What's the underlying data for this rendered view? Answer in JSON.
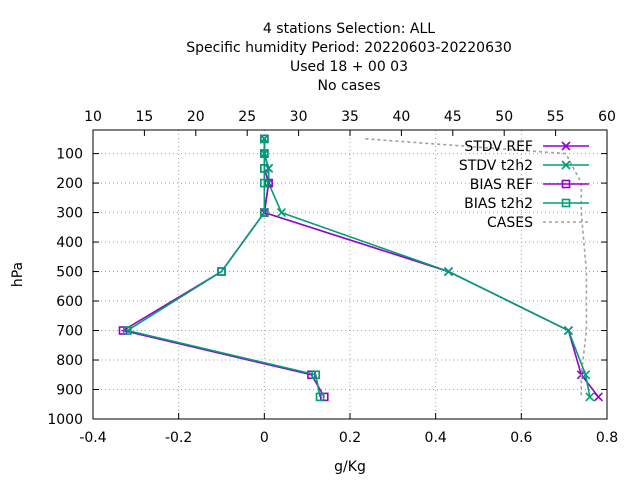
{
  "chart_data": {
    "type": "line",
    "title_lines": [
      "4 stations Selection: ALL",
      "Specific humidity  Period: 20220603-20220630",
      "Used  18  + 00 03",
      "No cases"
    ],
    "xlabel": "g/Kg",
    "ylabel": "hPa",
    "x_bottom": {
      "lim": [
        -0.4,
        0.8
      ],
      "ticks": [
        -0.4,
        -0.2,
        0,
        0.2,
        0.4,
        0.6,
        0.8
      ],
      "tick_labels": [
        "-0.4",
        "-0.2",
        "0",
        "0.2",
        "0.4",
        "0.6",
        "0.8"
      ]
    },
    "x_top": {
      "lim": [
        10,
        60
      ],
      "ticks": [
        10,
        15,
        20,
        25,
        30,
        35,
        40,
        45,
        50,
        55,
        60
      ],
      "tick_labels": [
        "10",
        "15",
        "20",
        "25",
        "30",
        "35",
        "40",
        "45",
        "50",
        "55",
        "60"
      ]
    },
    "y": {
      "lim": [
        1000,
        20
      ],
      "inverted": true,
      "ticks": [
        100,
        200,
        300,
        400,
        500,
        600,
        700,
        800,
        900,
        1000
      ],
      "tick_labels": [
        "100",
        "200",
        "300",
        "400",
        "500",
        "600",
        "700",
        "800",
        "900",
        "1000"
      ]
    },
    "grid": true,
    "legend_position": "top-right",
    "series": [
      {
        "name": "STDV REF",
        "color": "#9400d3",
        "marker": "x",
        "axis": "bottom",
        "points": [
          [
            0.0,
            50
          ],
          [
            0.0,
            100
          ],
          [
            0.01,
            150
          ],
          [
            0.01,
            200
          ],
          [
            0.0,
            300
          ],
          [
            0.43,
            500
          ],
          [
            0.71,
            700
          ],
          [
            0.74,
            850
          ],
          [
            0.78,
            925
          ]
        ]
      },
      {
        "name": "STDV t2h2",
        "color": "#009e73",
        "marker": "x",
        "axis": "bottom",
        "points": [
          [
            0.0,
            50
          ],
          [
            0.0,
            100
          ],
          [
            0.01,
            150
          ],
          [
            0.01,
            200
          ],
          [
            0.04,
            300
          ],
          [
            0.43,
            500
          ],
          [
            0.71,
            700
          ],
          [
            0.75,
            850
          ],
          [
            0.76,
            925
          ]
        ]
      },
      {
        "name": "BIAS REF",
        "color": "#9400d3",
        "marker": "square",
        "axis": "bottom",
        "points": [
          [
            0.0,
            50
          ],
          [
            0.0,
            100
          ],
          [
            0.0,
            150
          ],
          [
            0.01,
            200
          ],
          [
            0.0,
            300
          ],
          [
            -0.1,
            500
          ],
          [
            -0.33,
            700
          ],
          [
            0.11,
            850
          ],
          [
            0.14,
            925
          ]
        ]
      },
      {
        "name": "BIAS t2h2",
        "color": "#009e73",
        "marker": "square",
        "axis": "bottom",
        "points": [
          [
            0.0,
            50
          ],
          [
            0.0,
            100
          ],
          [
            0.0,
            150
          ],
          [
            0.0,
            200
          ],
          [
            0.0,
            300
          ],
          [
            -0.1,
            500
          ],
          [
            -0.32,
            700
          ],
          [
            0.12,
            850
          ],
          [
            0.13,
            925
          ]
        ]
      },
      {
        "name": "CASES",
        "color": "#a0a0a0",
        "marker": "none",
        "dashed": true,
        "axis": "top",
        "points": [
          [
            36.5,
            50
          ],
          [
            56,
            100
          ],
          [
            57.5,
            200
          ],
          [
            57.5,
            300
          ],
          [
            58,
            500
          ],
          [
            58,
            700
          ],
          [
            57.5,
            850
          ],
          [
            57.5,
            925
          ]
        ]
      }
    ]
  }
}
